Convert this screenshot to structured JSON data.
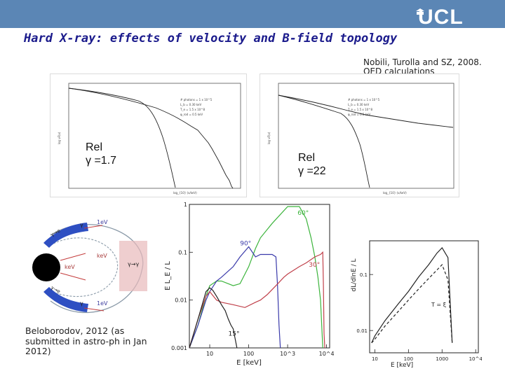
{
  "slide": {
    "logo": "UCL",
    "title": "Hard X-ray: effects of velocity and B-field topology",
    "citation_line1": "Nobili, Turolla and SZ, 2008.",
    "citation_line2": "QED calculations",
    "caption": "Beloborodov, 2012 (as submitted in astro-ph in Jan 2012)"
  },
  "chart_data": [
    {
      "id": "spectrum-rel-1-7",
      "type": "line",
      "annotation_line1": "Rel",
      "annotation_line2": "γ =1.7",
      "xlabel": "log_{10} (ν/keV)",
      "ylabel": "log νF(ν)",
      "legend_entries": [
        "# photons = 1 x 10^5",
        "L_b = 0.30 keV",
        "T_e = 1.5 x 10^8",
        "φ_rod = 0.5 keV"
      ],
      "note": "approximate shape traced from figure",
      "series": [
        {
          "name": "model-1",
          "style": "solid",
          "x": [
            0,
            0.05,
            0.12,
            0.2,
            0.3,
            0.4,
            0.5,
            0.6,
            0.7,
            0.8,
            0.9,
            1.0
          ],
          "y": [
            0,
            0.2,
            0.45,
            0.62,
            0.73,
            0.82,
            0.88,
            0.92,
            0.95,
            0.97,
            0.98,
            0.985
          ]
        },
        {
          "name": "model-2",
          "style": "dotted",
          "x": [
            0,
            0.05,
            0.12,
            0.2,
            0.3,
            0.4,
            0.5,
            0.6,
            0.7,
            0.8,
            0.9,
            1.0
          ],
          "y": [
            0,
            0.18,
            0.42,
            0.6,
            0.72,
            0.82,
            0.9,
            0.95,
            0.98,
            1.0,
            1.02,
            1.04
          ]
        }
      ]
    },
    {
      "id": "spectrum-rel-22",
      "type": "line",
      "annotation_line1": "Rel",
      "annotation_line2": "γ =22",
      "xlabel": "log_{10} (ν/keV)",
      "ylabel": "log νF(ν)",
      "legend_entries": [
        "# photons = 1 x 10^5",
        "L_b = 0.30 keV",
        "T_e = 1.5 x 10^8",
        "φ_rod = 0.5 keV"
      ],
      "note": "approximate shape traced from figure",
      "series": [
        {
          "name": "model-1",
          "style": "solid",
          "x": [
            0,
            0.05,
            0.12,
            0.2,
            0.3,
            0.4,
            0.5,
            0.6,
            0.7,
            0.8,
            0.9,
            1.0
          ],
          "y": [
            0,
            0.2,
            0.45,
            0.62,
            0.73,
            0.82,
            0.88,
            0.92,
            0.95,
            0.97,
            0.98,
            0.985
          ]
        },
        {
          "name": "model-2",
          "style": "dotted",
          "x": [
            0,
            0.05,
            0.12,
            0.2,
            0.3,
            0.4,
            0.5,
            0.6,
            0.7,
            0.8,
            0.9,
            1.0
          ],
          "y": [
            0,
            0.18,
            0.42,
            0.6,
            0.72,
            0.82,
            0.9,
            0.95,
            0.98,
            1.0,
            1.02,
            1.04
          ]
        }
      ]
    },
    {
      "id": "beloborodov-angles",
      "type": "line",
      "xlabel": "E [keV]",
      "ylabel": "E L_E / L",
      "x_scale": "log",
      "y_scale": "log",
      "xlim": [
        3,
        12000
      ],
      "ylim": [
        0.001,
        1
      ],
      "x_ticks": [
        "10",
        "100",
        "10^3",
        "10^4"
      ],
      "y_ticks": [
        "0.001",
        "0.01",
        "0.1",
        "1"
      ],
      "series": [
        {
          "name": "60°",
          "color": "#3cb43c",
          "x": [
            3,
            5,
            8,
            10,
            15,
            20,
            40,
            60,
            100,
            150,
            200,
            400,
            1000,
            2000,
            3000,
            4000,
            5000,
            6000,
            7000,
            8000
          ],
          "y": [
            0.001,
            0.003,
            0.012,
            0.02,
            0.025,
            0.025,
            0.02,
            0.022,
            0.05,
            0.12,
            0.2,
            0.4,
            0.9,
            0.9,
            0.5,
            0.2,
            0.08,
            0.03,
            0.01,
            0.001
          ]
        },
        {
          "name": "90°",
          "color": "#3a3aaa",
          "x": [
            3,
            5,
            8,
            10,
            15,
            20,
            40,
            60,
            100,
            150,
            200,
            300,
            400,
            500,
            550,
            600,
            650
          ],
          "y": [
            0.001,
            0.003,
            0.01,
            0.015,
            0.025,
            0.03,
            0.05,
            0.08,
            0.13,
            0.08,
            0.09,
            0.09,
            0.09,
            0.08,
            0.02,
            0.003,
            0.001
          ]
        },
        {
          "name": "30°",
          "color": "#c0404a",
          "x": [
            3,
            5,
            8,
            10,
            15,
            20,
            40,
            80,
            150,
            200,
            300,
            500,
            800,
            1000,
            2000,
            3000,
            5000,
            7000,
            8000,
            8300,
            8600,
            9000
          ],
          "y": [
            0.001,
            0.004,
            0.012,
            0.015,
            0.01,
            0.009,
            0.008,
            0.007,
            0.009,
            0.01,
            0.013,
            0.02,
            0.03,
            0.035,
            0.05,
            0.06,
            0.08,
            0.09,
            0.1,
            0.02,
            0.002,
            0.001
          ]
        },
        {
          "name": "15°",
          "color": "#222222",
          "x": [
            3,
            5,
            8,
            10,
            12,
            15,
            20,
            25,
            30,
            35,
            40,
            50
          ],
          "y": [
            0.001,
            0.004,
            0.015,
            0.018,
            0.016,
            0.012,
            0.008,
            0.006,
            0.004,
            0.003,
            0.0025,
            0.001
          ]
        }
      ]
    },
    {
      "id": "right-spectrum",
      "type": "line",
      "xlabel": "E [keV]",
      "ylabel": "dL/dlnE / L",
      "x_scale": "log",
      "y_scale": "log",
      "xlim": [
        7,
        12000
      ],
      "ylim": [
        0.004,
        0.4
      ],
      "x_ticks": [
        "10",
        "100",
        "1000",
        "10^4"
      ],
      "y_ticks": [
        "0.01",
        "0.1"
      ],
      "annotation": "T = ξ",
      "series": [
        {
          "name": "solid",
          "style": "solid",
          "x": [
            8,
            10,
            20,
            50,
            100,
            200,
            400,
            700,
            1000,
            1500,
            2000
          ],
          "y": [
            0.006,
            0.008,
            0.015,
            0.03,
            0.05,
            0.09,
            0.15,
            0.24,
            0.3,
            0.2,
            0.006
          ]
        },
        {
          "name": "dashed",
          "style": "dashed",
          "x": [
            8,
            10,
            20,
            50,
            100,
            200,
            400,
            700,
            1000,
            1500,
            2000
          ],
          "y": [
            0.006,
            0.007,
            0.012,
            0.022,
            0.035,
            0.055,
            0.085,
            0.12,
            0.15,
            0.08,
            0.006
          ]
        }
      ]
    }
  ],
  "diagram": {
    "labels": {
      "top_photon": "γ",
      "top_beam": "γ→e",
      "lev": "1eV",
      "kev_right": "keV",
      "left_kev": "keV",
      "gamma_right": "γ→γ",
      "bottom_beam": "γ→e",
      "bottom_photon": "γ",
      "bottom_lev": "1eV"
    }
  }
}
